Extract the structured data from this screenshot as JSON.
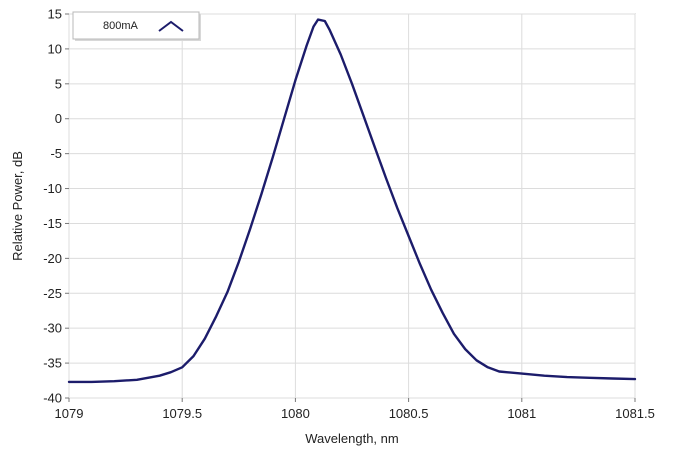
{
  "chart_data": {
    "type": "line",
    "xlabel": "Wavelength, nm",
    "ylabel": "Relative Power, dB",
    "xlim": [
      1079,
      1081.5
    ],
    "ylim": [
      -40,
      15
    ],
    "x_ticks": [
      1079,
      1079.5,
      1080,
      1080.5,
      1081,
      1081.5
    ],
    "x_tick_labels": [
      "1079",
      "1079.5",
      "1080",
      "1080.5",
      "1081",
      "1081.5"
    ],
    "y_ticks": [
      15,
      10,
      5,
      0,
      -5,
      -10,
      -15,
      -20,
      -25,
      -30,
      -35,
      -40
    ],
    "y_tick_labels": [
      "15",
      "10",
      "5",
      "0",
      "-5",
      "-10",
      "-15",
      "-20",
      "-25",
      "-30",
      "-35",
      "-40"
    ],
    "grid": true,
    "legend_placement": "top-left",
    "series": [
      {
        "name": "800mA",
        "color": "#1c1c6b",
        "x": [
          1079.0,
          1079.1,
          1079.2,
          1079.3,
          1079.4,
          1079.45,
          1079.5,
          1079.55,
          1079.6,
          1079.65,
          1079.7,
          1079.75,
          1079.8,
          1079.85,
          1079.9,
          1079.95,
          1080.0,
          1080.05,
          1080.08,
          1080.1,
          1080.13,
          1080.15,
          1080.2,
          1080.25,
          1080.3,
          1080.35,
          1080.4,
          1080.45,
          1080.5,
          1080.55,
          1080.6,
          1080.65,
          1080.7,
          1080.75,
          1080.8,
          1080.85,
          1080.9,
          1081.0,
          1081.1,
          1081.2,
          1081.3,
          1081.4,
          1081.5
        ],
        "y": [
          -37.7,
          -37.7,
          -37.6,
          -37.4,
          -36.8,
          -36.3,
          -35.6,
          -34.0,
          -31.5,
          -28.3,
          -24.8,
          -20.5,
          -15.8,
          -10.8,
          -5.5,
          0.0,
          5.5,
          10.5,
          13.2,
          14.2,
          14.0,
          12.8,
          9.2,
          5.0,
          0.5,
          -4.0,
          -8.5,
          -12.8,
          -16.8,
          -20.8,
          -24.5,
          -27.8,
          -30.8,
          -33.0,
          -34.6,
          -35.6,
          -36.2,
          -36.5,
          -36.8,
          -37.0,
          -37.1,
          -37.2,
          -37.3
        ]
      }
    ]
  }
}
